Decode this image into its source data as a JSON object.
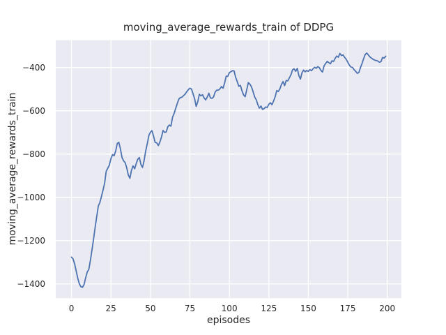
{
  "chart_data": {
    "type": "line",
    "title": "moving_average_rewards_train of DDPG",
    "xlabel": "episodes",
    "ylabel": "moving_average_rewards_train",
    "x_ticks": [
      0,
      25,
      50,
      75,
      100,
      125,
      150,
      175,
      200
    ],
    "y_ticks": [
      -400,
      -600,
      -800,
      -1000,
      -1200,
      -1400
    ],
    "xlim": [
      -9.95,
      208.95
    ],
    "ylim": [
      -1466,
      -274
    ],
    "grid": true,
    "legend": "none",
    "colors": {
      "line": "#4C72B0",
      "plot_background": "#EAEAF2",
      "grid": "#FFFFFF",
      "text": "#262626",
      "figure_background": "#FFFFFF"
    },
    "series": [
      {
        "name": "moving_average_rewards_train",
        "x_start": 0,
        "x_step": 1,
        "values": [
          -1276,
          -1284,
          -1308,
          -1340,
          -1374,
          -1400,
          -1413,
          -1416,
          -1402,
          -1372,
          -1345,
          -1332,
          -1292,
          -1243,
          -1192,
          -1140,
          -1089,
          -1040,
          -1024,
          -996,
          -966,
          -935,
          -880,
          -865,
          -852,
          -821,
          -803,
          -808,
          -786,
          -751,
          -746,
          -776,
          -816,
          -831,
          -840,
          -864,
          -897,
          -912,
          -876,
          -855,
          -868,
          -845,
          -824,
          -816,
          -848,
          -862,
          -830,
          -787,
          -753,
          -715,
          -699,
          -692,
          -718,
          -746,
          -748,
          -761,
          -745,
          -722,
          -691,
          -700,
          -698,
          -674,
          -666,
          -671,
          -630,
          -613,
          -589,
          -567,
          -546,
          -539,
          -537,
          -530,
          -523,
          -512,
          -503,
          -496,
          -500,
          -521,
          -545,
          -580,
          -558,
          -524,
          -531,
          -526,
          -541,
          -550,
          -537,
          -519,
          -540,
          -543,
          -536,
          -514,
          -505,
          -505,
          -499,
          -488,
          -496,
          -472,
          -440,
          -441,
          -424,
          -419,
          -415,
          -416,
          -446,
          -466,
          -487,
          -483,
          -508,
          -527,
          -535,
          -503,
          -470,
          -477,
          -490,
          -511,
          -536,
          -549,
          -571,
          -588,
          -578,
          -594,
          -590,
          -583,
          -585,
          -570,
          -563,
          -572,
          -555,
          -536,
          -507,
          -511,
          -499,
          -478,
          -465,
          -484,
          -460,
          -462,
          -448,
          -434,
          -411,
          -406,
          -418,
          -404,
          -437,
          -454,
          -424,
          -412,
          -420,
          -414,
          -418,
          -410,
          -415,
          -406,
          -399,
          -404,
          -396,
          -401,
          -414,
          -421,
          -392,
          -381,
          -372,
          -378,
          -383,
          -369,
          -372,
          -358,
          -347,
          -353,
          -335,
          -345,
          -342,
          -353,
          -362,
          -376,
          -389,
          -398,
          -400,
          -410,
          -418,
          -427,
          -424,
          -401,
          -382,
          -360,
          -340,
          -333,
          -342,
          -351,
          -357,
          -362,
          -366,
          -368,
          -370,
          -376,
          -373,
          -354,
          -357,
          -348
        ]
      }
    ]
  }
}
